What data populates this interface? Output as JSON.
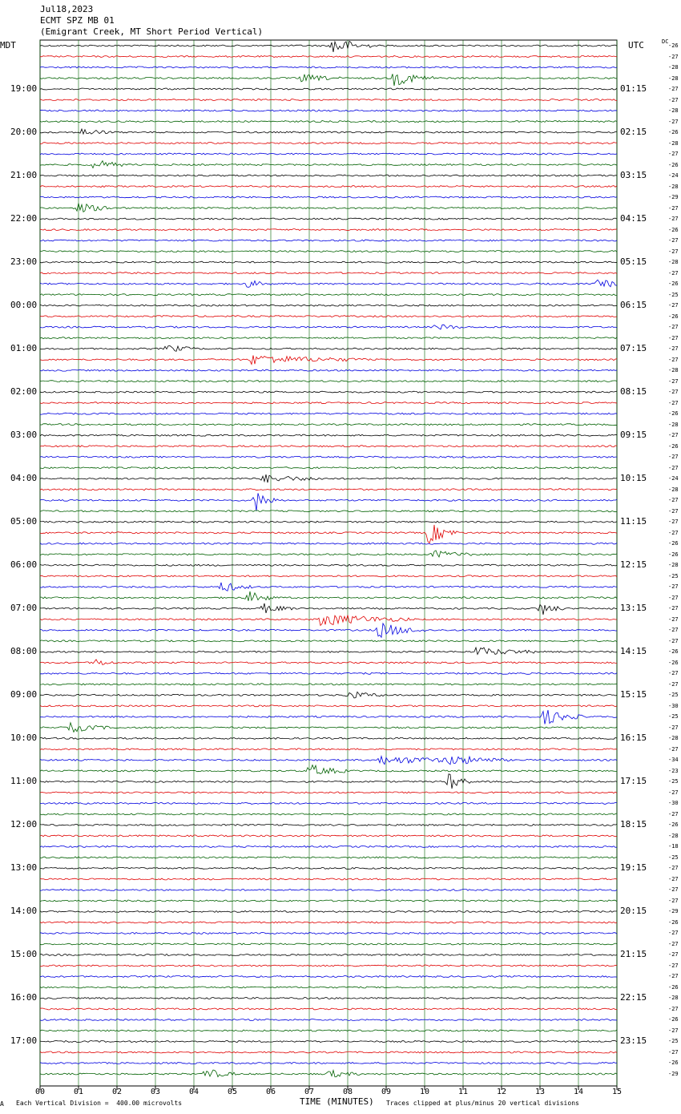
{
  "header": {
    "date": "Jul18,2023",
    "station": "ECMT SPZ MB 01",
    "location": "(Emigrant Creek, MT Short Period Vertical)",
    "left_zone": "MDT",
    "right_zone": "UTC",
    "dc_label": "DC"
  },
  "colors": {
    "trace_cycle": [
      "#000000",
      "#e00000",
      "#0000e0",
      "#006000"
    ],
    "grid": "#006000"
  },
  "chart_data": {
    "type": "line",
    "title": "ECMT SPZ MB 01",
    "xlabel": "TIME (MINUTES)",
    "x_range": [
      0,
      15
    ],
    "x_ticks": [
      "00",
      "01",
      "02",
      "03",
      "04",
      "05",
      "06",
      "07",
      "08",
      "09",
      "10",
      "11",
      "12",
      "13",
      "14",
      "15"
    ],
    "rows": 96,
    "left_hour_labels": [
      "19:00",
      "20:00",
      "21:00",
      "22:00",
      "23:00",
      "00:00",
      "01:00",
      "02:00",
      "03:00",
      "04:00",
      "05:00",
      "06:00",
      "07:00",
      "08:00",
      "09:00",
      "10:00",
      "11:00",
      "12:00",
      "13:00",
      "14:00",
      "15:00",
      "16:00",
      "17:00"
    ],
    "right_hour_labels": [
      "01:15",
      "02:15",
      "03:15",
      "04:15",
      "05:15",
      "06:15",
      "07:15",
      "08:15",
      "09:15",
      "10:15",
      "11:15",
      "12:15",
      "13:15",
      "14:15",
      "15:15",
      "16:15",
      "17:15",
      "18:15",
      "19:15",
      "20:15",
      "21:15",
      "22:15",
      "23:15"
    ],
    "dc_offsets": [
      "-26",
      "-27",
      "-28",
      "-28",
      "-27",
      "-27",
      "-28",
      "-27",
      "-26",
      "-28",
      "-27",
      "-26",
      "-24",
      "-28",
      "-29",
      "-27",
      "-27",
      "-26",
      "-27",
      "-27",
      "-28",
      "-27",
      "-26",
      "-25",
      "-27",
      "-26",
      "-27",
      "-27",
      "-27",
      "-27",
      "-28",
      "-27",
      "-27",
      "-27",
      "-26",
      "-28",
      "-27",
      "-26",
      "-27",
      "-27",
      "-24",
      "-28",
      "-27",
      "-27",
      "-27",
      "-27",
      "-26",
      "-26",
      "-28",
      "-25",
      "-27",
      "-27",
      "-27",
      "-27",
      "-27",
      "-27",
      "-26",
      "-26",
      "-27",
      "-27",
      "-25",
      "-30",
      "-25",
      "-27",
      "-28",
      "-27",
      "-34",
      "-23",
      "-25",
      "-27",
      "-30",
      "-27",
      "-26",
      "-28",
      "-18",
      "-25",
      "-27",
      "-27",
      "-27",
      "-27",
      "-29",
      "-26",
      "-27",
      "-27",
      "-27",
      "-27",
      "-27",
      "-26",
      "-28",
      "-27",
      "-26",
      "-27",
      "-25",
      "-27",
      "-26",
      "-29"
    ],
    "events": [
      {
        "row": 0,
        "minute": 7.6,
        "amp": 12,
        "dur": 0.5
      },
      {
        "row": 3,
        "minute": 9.2,
        "amp": 9,
        "dur": 0.6
      },
      {
        "row": 3,
        "minute": 6.8,
        "amp": 5,
        "dur": 0.5
      },
      {
        "row": 8,
        "minute": 1.1,
        "amp": 5,
        "dur": 0.4
      },
      {
        "row": 11,
        "minute": 1.4,
        "amp": 7,
        "dur": 0.4
      },
      {
        "row": 15,
        "minute": 1.0,
        "amp": 6,
        "dur": 0.5
      },
      {
        "row": 22,
        "minute": 5.4,
        "amp": 5,
        "dur": 0.3
      },
      {
        "row": 22,
        "minute": 14.5,
        "amp": 4,
        "dur": 1.0
      },
      {
        "row": 26,
        "minute": 10.3,
        "amp": 4,
        "dur": 0.4
      },
      {
        "row": 28,
        "minute": 3.3,
        "amp": 5,
        "dur": 0.4
      },
      {
        "row": 29,
        "minute": 5.5,
        "amp": 6,
        "dur": 1.5
      },
      {
        "row": 40,
        "minute": 5.8,
        "amp": 5,
        "dur": 0.8
      },
      {
        "row": 42,
        "minute": 5.6,
        "amp": 14,
        "dur": 0.3
      },
      {
        "row": 45,
        "minute": 10.1,
        "amp": 14,
        "dur": 0.4
      },
      {
        "row": 47,
        "minute": 10.2,
        "amp": 5,
        "dur": 0.6
      },
      {
        "row": 50,
        "minute": 4.7,
        "amp": 7,
        "dur": 0.4
      },
      {
        "row": 51,
        "minute": 5.4,
        "amp": 8,
        "dur": 0.4
      },
      {
        "row": 52,
        "minute": 5.8,
        "amp": 6,
        "dur": 0.4
      },
      {
        "row": 52,
        "minute": 13.0,
        "amp": 9,
        "dur": 0.3
      },
      {
        "row": 53,
        "minute": 7.3,
        "amp": 8,
        "dur": 1.2
      },
      {
        "row": 54,
        "minute": 8.8,
        "amp": 10,
        "dur": 0.6
      },
      {
        "row": 56,
        "minute": 11.3,
        "amp": 6,
        "dur": 0.8
      },
      {
        "row": 57,
        "minute": 1.4,
        "amp": 5,
        "dur": 0.3
      },
      {
        "row": 60,
        "minute": 8.0,
        "amp": 5,
        "dur": 0.5
      },
      {
        "row": 62,
        "minute": 13.1,
        "amp": 10,
        "dur": 0.5
      },
      {
        "row": 63,
        "minute": 0.8,
        "amp": 6,
        "dur": 0.5
      },
      {
        "row": 66,
        "minute": 8.8,
        "amp": 5,
        "dur": 1.5
      },
      {
        "row": 66,
        "minute": 10.6,
        "amp": 5,
        "dur": 0.8
      },
      {
        "row": 67,
        "minute": 7.0,
        "amp": 8,
        "dur": 0.5
      },
      {
        "row": 68,
        "minute": 10.6,
        "amp": 12,
        "dur": 0.3
      },
      {
        "row": 95,
        "minute": 4.3,
        "amp": 7,
        "dur": 0.4
      },
      {
        "row": 95,
        "minute": 7.5,
        "amp": 5,
        "dur": 0.4
      }
    ]
  },
  "footer": {
    "scale_note": "Each Vertical Division =  400.00 microvolts",
    "clip_note": "Traces clipped at plus/minus 20 vertical divisions",
    "corner_mark": "A"
  }
}
